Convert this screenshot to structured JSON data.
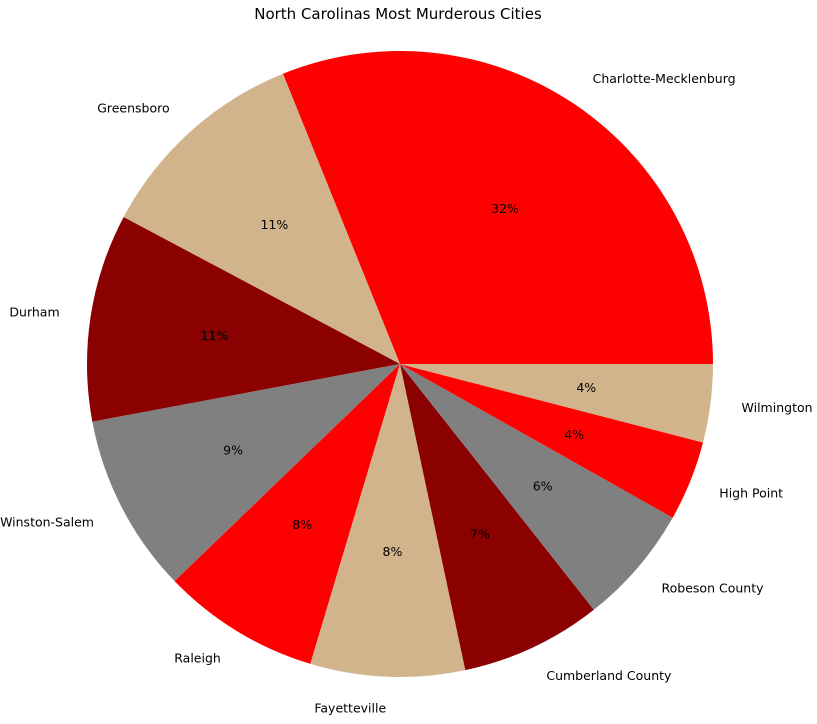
{
  "chart_data": {
    "type": "pie",
    "title": "North Carolinas Most Murderous Cities",
    "categories": [
      "Charlotte-Mecklenburg",
      "Greensboro",
      "Durham",
      "Winston-Salem",
      "Raleigh",
      "Fayetteville",
      "Cumberland County",
      "Robeson County",
      "High Point",
      "Wilmington"
    ],
    "values": [
      31.6,
      11.3,
      10.9,
      9.4,
      8.3,
      8.1,
      7.4,
      6.3,
      4.2,
      4.1
    ],
    "percent_labels": [
      "32%",
      "11%",
      "11%",
      "9%",
      "8%",
      "8%",
      "7%",
      "6%",
      "4%",
      "4%"
    ],
    "colors": [
      "#ff0000",
      "#d2b48c",
      "#8b0000",
      "#808080",
      "#ff0000",
      "#d2b48c",
      "#8b0000",
      "#808080",
      "#ff0000",
      "#d2b48c"
    ],
    "start_angle_deg": 0,
    "direction": "counterclockwise"
  }
}
